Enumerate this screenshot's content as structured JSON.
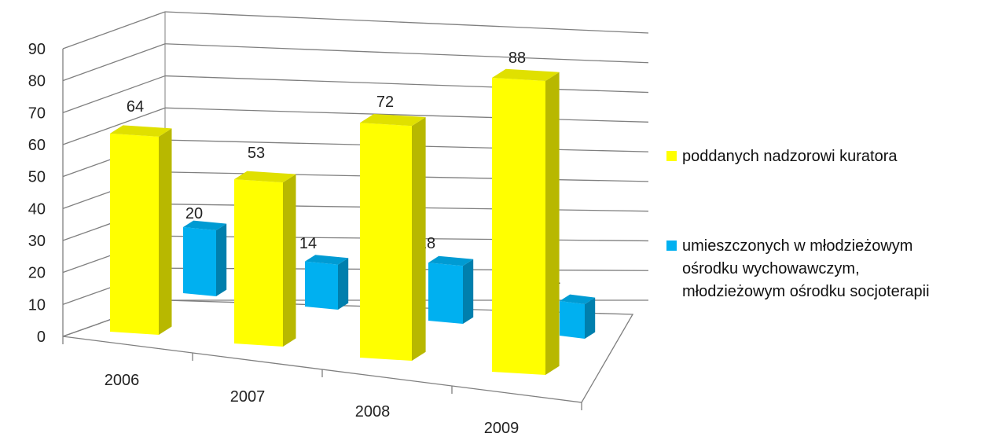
{
  "chart_data": {
    "type": "bar",
    "categories": [
      "2006",
      "2007",
      "2008",
      "2009"
    ],
    "series": [
      {
        "name": "poddanych nadzorowi kuratora",
        "values": [
          64,
          53,
          72,
          88
        ],
        "color": "#FFFF00"
      },
      {
        "name_lines": [
          "umieszczonych w młodzieżowym",
          "ośrodku wychowawczym,",
          "młodzieżowym ośrodku socjoterapii"
        ],
        "values": [
          20,
          14,
          18,
          11
        ],
        "color": "#00B0F0"
      }
    ],
    "ylim": [
      0,
      90
    ],
    "yticks": [
      "0",
      "10",
      "20",
      "30",
      "40",
      "50",
      "60",
      "70",
      "80",
      "90"
    ],
    "grid": true,
    "legend_position": "right",
    "three_d": true
  }
}
